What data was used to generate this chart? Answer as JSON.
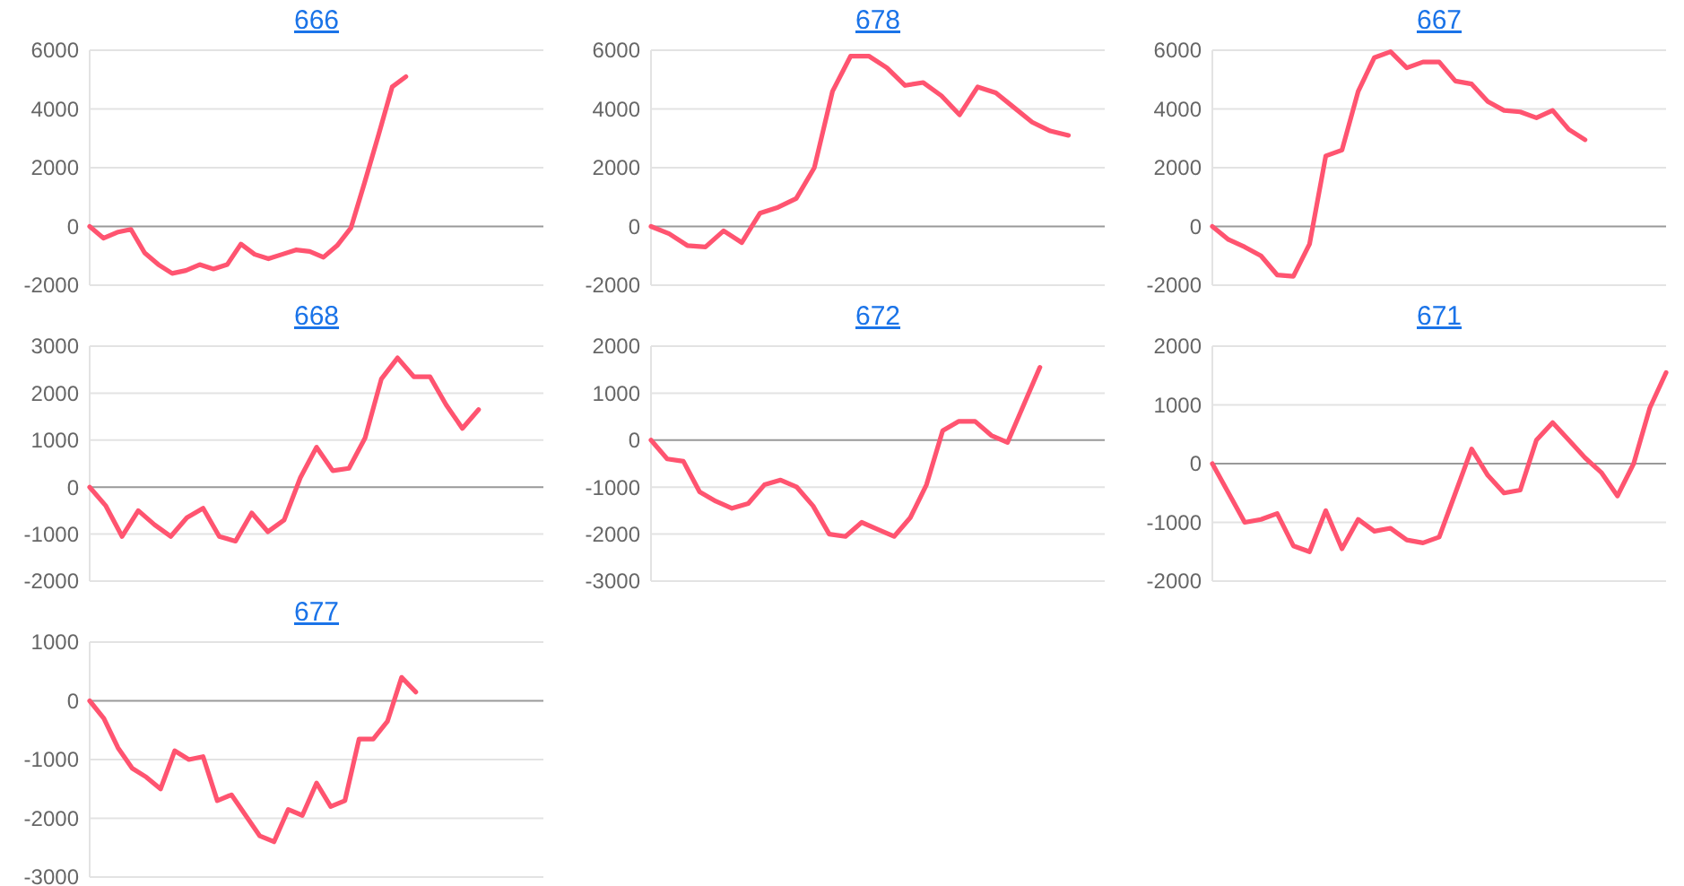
{
  "chart_data": [
    {
      "type": "line",
      "title": "666",
      "categories": [
        null,
        null,
        null,
        null,
        null,
        null,
        null,
        null,
        null,
        null,
        null,
        null,
        null,
        null,
        null,
        null,
        null,
        null,
        null,
        null,
        null,
        null,
        null,
        null,
        null,
        null,
        null,
        null,
        null,
        null,
        null,
        null,
        null,
        null
      ],
      "series": [
        {
          "color": "#ff5470",
          "values": [
            0,
            -400,
            -200,
            -100,
            -900,
            -1300,
            -1600,
            -1500,
            -1300,
            -1450,
            -1300,
            -600,
            -950,
            -1100,
            -950,
            -800,
            -850,
            -1050,
            -650,
            -50,
            1500,
            3100,
            4750,
            5100,
            null,
            null,
            null,
            null,
            null,
            null,
            null,
            null,
            null,
            null
          ]
        }
      ],
      "ylim": [
        -2000,
        6000
      ],
      "yticks": [
        -2000,
        0,
        2000,
        4000,
        6000
      ],
      "grid": "y",
      "tick_labels": "y"
    },
    {
      "type": "line",
      "title": "678",
      "categories": [
        null,
        null,
        null,
        null,
        null,
        null,
        null,
        null,
        null,
        null,
        null,
        null,
        null,
        null,
        null,
        null,
        null,
        null,
        null,
        null,
        null,
        null,
        null,
        null,
        null,
        null
      ],
      "series": [
        {
          "color": "#ff5470",
          "values": [
            0,
            -250,
            -650,
            -700,
            -150,
            -550,
            450,
            650,
            950,
            2000,
            4600,
            5800,
            5800,
            5400,
            4800,
            4900,
            4450,
            3800,
            4750,
            4550,
            4050,
            3550,
            3250,
            3100,
            null,
            null
          ]
        }
      ],
      "ylim": [
        -2000,
        6000
      ],
      "yticks": [
        -2000,
        0,
        2000,
        4000,
        6000
      ],
      "grid": "y",
      "tick_labels": "y"
    },
    {
      "type": "line",
      "title": "667",
      "categories": [
        null,
        null,
        null,
        null,
        null,
        null,
        null,
        null,
        null,
        null,
        null,
        null,
        null,
        null,
        null,
        null,
        null,
        null,
        null,
        null,
        null,
        null,
        null,
        null,
        null,
        null,
        null,
        null,
        null
      ],
      "series": [
        {
          "color": "#ff5470",
          "values": [
            0,
            -450,
            -700,
            -1000,
            -1650,
            -1700,
            -600,
            2400,
            2600,
            4600,
            5750,
            5950,
            5400,
            5600,
            5600,
            4950,
            4850,
            4250,
            3950,
            3900,
            3700,
            3950,
            3300,
            2950,
            null,
            null,
            null,
            null,
            null
          ]
        }
      ],
      "ylim": [
        -2000,
        6000
      ],
      "yticks": [
        -2000,
        0,
        2000,
        4000,
        6000
      ],
      "grid": "y",
      "tick_labels": "y"
    },
    {
      "type": "line",
      "title": "668",
      "categories": [
        null,
        null,
        null,
        null,
        null,
        null,
        null,
        null,
        null,
        null,
        null,
        null,
        null,
        null,
        null,
        null,
        null,
        null,
        null,
        null,
        null,
        null,
        null,
        null,
        null,
        null,
        null,
        null,
        null
      ],
      "series": [
        {
          "color": "#ff5470",
          "values": [
            0,
            -400,
            -1050,
            -500,
            -800,
            -1050,
            -650,
            -450,
            -1050,
            -1150,
            -550,
            -950,
            -700,
            200,
            850,
            350,
            400,
            1050,
            2300,
            2750,
            2350,
            2350,
            1750,
            1250,
            1650,
            null,
            null,
            null,
            null
          ]
        }
      ],
      "ylim": [
        -2000,
        3000
      ],
      "yticks": [
        -2000,
        -1000,
        0,
        1000,
        2000,
        3000
      ],
      "grid": "y",
      "tick_labels": "y"
    },
    {
      "type": "line",
      "title": "672",
      "categories": [
        null,
        null,
        null,
        null,
        null,
        null,
        null,
        null,
        null,
        null,
        null,
        null,
        null,
        null,
        null,
        null,
        null,
        null,
        null,
        null,
        null,
        null,
        null,
        null,
        null,
        null,
        null,
        null,
        null
      ],
      "series": [
        {
          "color": "#ff5470",
          "values": [
            0,
            -400,
            -450,
            -1100,
            -1300,
            -1450,
            -1350,
            -950,
            -850,
            -1000,
            -1400,
            -2000,
            -2050,
            -1750,
            -1900,
            -2050,
            -1650,
            -950,
            200,
            400,
            400,
            100,
            -50,
            750,
            1550,
            null,
            null,
            null,
            null
          ]
        }
      ],
      "ylim": [
        -3000,
        2000
      ],
      "yticks": [
        -3000,
        -2000,
        -1000,
        0,
        1000,
        2000
      ],
      "grid": "y",
      "tick_labels": "y"
    },
    {
      "type": "line",
      "title": "671",
      "categories": [
        null,
        null,
        null,
        null,
        null,
        null,
        null,
        null,
        null,
        null,
        null,
        null,
        null,
        null,
        null,
        null,
        null,
        null,
        null,
        null,
        null,
        null,
        null,
        null,
        null,
        null,
        null,
        null,
        null
      ],
      "series": [
        {
          "color": "#ff5470",
          "values": [
            0,
            -500,
            -1000,
            -950,
            -850,
            -1400,
            -1500,
            -800,
            -1450,
            -950,
            -1150,
            -1100,
            -1300,
            -1350,
            -1250,
            -500,
            250,
            -200,
            -500,
            -450,
            400,
            700,
            400,
            100,
            -150,
            -550,
            0,
            950,
            1550
          ]
        }
      ],
      "ylim": [
        -2000,
        2000
      ],
      "yticks": [
        -2000,
        -1000,
        0,
        1000,
        2000
      ],
      "grid": "y",
      "tick_labels": "y"
    },
    {
      "type": "line",
      "title": "677",
      "categories": [
        null,
        null,
        null,
        null,
        null,
        null,
        null,
        null,
        null,
        null,
        null,
        null,
        null,
        null,
        null,
        null,
        null,
        null,
        null,
        null,
        null,
        null,
        null,
        null,
        null,
        null,
        null,
        null,
        null,
        null,
        null,
        null,
        null
      ],
      "series": [
        {
          "color": "#ff5470",
          "values": [
            0,
            -300,
            -800,
            -1150,
            -1300,
            -1500,
            -850,
            -1000,
            -950,
            -1700,
            -1600,
            -1950,
            -2300,
            -2400,
            -1850,
            -1950,
            -1400,
            -1800,
            -1700,
            -650,
            -650,
            -350,
            400,
            150,
            null,
            null,
            null,
            null,
            null,
            null,
            null,
            null,
            null
          ]
        }
      ],
      "ylim": [
        -3000,
        1000
      ],
      "yticks": [
        -3000,
        -2000,
        -1000,
        0,
        1000
      ],
      "grid": "y",
      "tick_labels": "y"
    }
  ]
}
